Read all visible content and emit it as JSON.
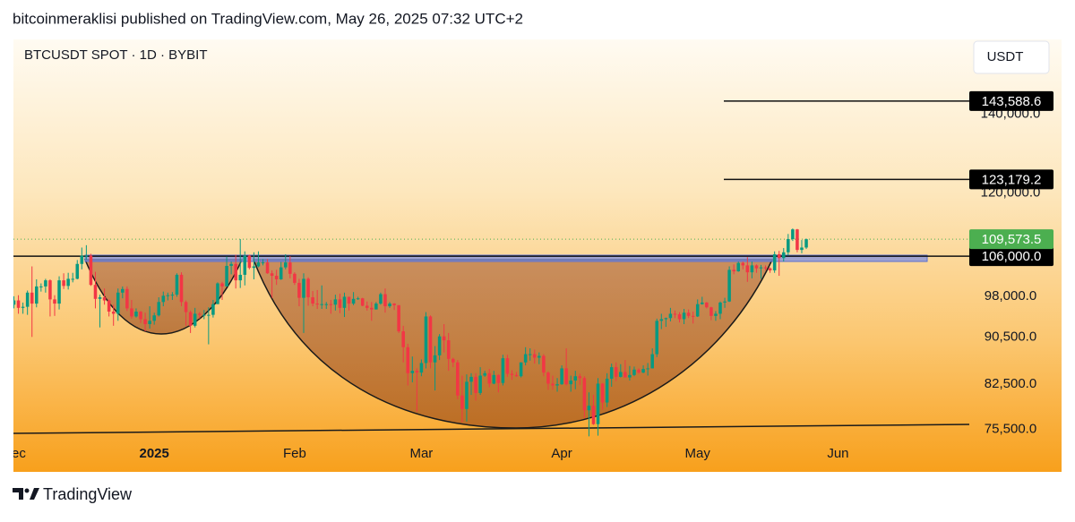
{
  "header": {
    "publisher": "bitcoinmeraklisi published on TradingView.com, May 26, 2025 07:32 UTC+2"
  },
  "chart_data": {
    "type": "candlestick",
    "title": "BTCUSDT SPOT · 1D · BYBIT",
    "currency": "USDT",
    "xlim": [
      0,
      211
    ],
    "xticks": [
      {
        "value": 0,
        "label": "Dec"
      },
      {
        "value": 31,
        "label": "2025",
        "bold": true
      },
      {
        "value": 62,
        "label": "Feb"
      },
      {
        "value": 90,
        "label": "Mar"
      },
      {
        "value": 121,
        "label": "Apr"
      },
      {
        "value": 151,
        "label": "May"
      },
      {
        "value": 182,
        "label": "Jun"
      }
    ],
    "ylim": [
      69500,
      162000
    ],
    "ylog": true,
    "yticks": [
      {
        "value": 75500,
        "label": "75,500.0"
      },
      {
        "value": 82500,
        "label": "82,500.0"
      },
      {
        "value": 90500,
        "label": "90,500.0"
      },
      {
        "value": 98000,
        "label": "98,000.0"
      },
      {
        "value": 120000,
        "label": "120,000.0"
      },
      {
        "value": 140000,
        "label": "140,000.0"
      }
    ],
    "up_color": "#089981",
    "down_color": "#f23645",
    "open": [
      96400,
      97200,
      95800,
      96000,
      98700,
      96600,
      99900,
      99900,
      101100,
      97400,
      96600,
      101100,
      100000,
      101400,
      101400,
      104400,
      106100,
      106100,
      100200,
      97500,
      97800,
      97200,
      95100,
      94700,
      98700,
      99400,
      95700,
      94200,
      95100,
      93700,
      92800,
      93400,
      94400,
      96900,
      98100,
      98200,
      98300,
      102200,
      96900,
      95000,
      92500,
      94700,
      94500,
      94500,
      94500,
      96500,
      100500,
      99900,
      104000,
      104400,
      101100,
      102200,
      106100,
      103600,
      103900,
      104700,
      104700,
      102500,
      102000,
      101300,
      103700,
      104700,
      102400,
      100600,
      97700,
      101400,
      97800,
      96600,
      96500,
      96500,
      96500,
      96400,
      97400,
      95800,
      97900,
      96600,
      97500,
      97600,
      96200,
      95800,
      95500,
      96600,
      98400,
      96100,
      96600,
      96300,
      91500,
      88700,
      84300,
      84700,
      84400,
      86000,
      94200,
      86100,
      87300,
      90600,
      89900,
      86700,
      86100,
      80700,
      78600,
      82900,
      83700,
      81100,
      83900,
      84300,
      82600,
      84000,
      82700,
      86800,
      84200,
      84000,
      83800,
      86100,
      87500,
      87500,
      86900,
      87200,
      84400,
      82600,
      82300,
      82500,
      85100,
      82500,
      83100,
      83800,
      83500,
      78400,
      79100,
      76300,
      82600,
      79600,
      83400,
      85300,
      83700,
      84500,
      83600,
      84000,
      84900,
      84400,
      85000,
      85100,
      87500,
      93400,
      93700,
      93900,
      94700,
      94600,
      93700,
      94900,
      94300,
      94200,
      96500,
      96800,
      95900,
      94300,
      94700,
      96800,
      97000,
      103200,
      102900,
      104600,
      104100,
      102700,
      104100,
      103500,
      103700,
      103500,
      103100,
      106400,
      105600,
      106800,
      109600,
      111700,
      107300,
      107800
    ],
    "high": [
      98000,
      98200,
      96800,
      99100,
      103900,
      101300,
      100500,
      101400,
      101300,
      98200,
      101900,
      102500,
      102600,
      102600,
      105200,
      107800,
      108300,
      106500,
      102800,
      98300,
      99500,
      97400,
      96400,
      99500,
      99900,
      99900,
      97300,
      95700,
      95200,
      94900,
      96100,
      94900,
      97800,
      98900,
      98700,
      98800,
      102500,
      102700,
      97200,
      95300,
      95800,
      95000,
      95400,
      95900,
      97300,
      100700,
      100800,
      105900,
      104900,
      106300,
      109600,
      107000,
      106300,
      106800,
      107000,
      105400,
      105400,
      103100,
      103200,
      104800,
      106400,
      106000,
      102700,
      101400,
      102500,
      101700,
      99000,
      99200,
      100100,
      96900,
      97300,
      98300,
      98500,
      98700,
      97900,
      98800,
      97900,
      97700,
      97000,
      96900,
      96900,
      98700,
      99500,
      96900,
      96700,
      96300,
      92500,
      89300,
      87100,
      85100,
      86600,
      95000,
      94400,
      88900,
      91000,
      92800,
      91200,
      86900,
      86500,
      83900,
      84100,
      84300,
      84300,
      85300,
      84700,
      85000,
      84700,
      84100,
      87400,
      87400,
      84800,
      84500,
      86100,
      88700,
      88500,
      88300,
      87800,
      87500,
      84600,
      83900,
      83500,
      85600,
      88500,
      83900,
      84700,
      84200,
      83800,
      81200,
      80800,
      83500,
      82700,
      84300,
      85900,
      86100,
      85800,
      86500,
      85500,
      85400,
      85100,
      85600,
      86000,
      88500,
      93800,
      94700,
      94000,
      95800,
      95300,
      95000,
      95600,
      95500,
      95100,
      97400,
      97900,
      96900,
      96000,
      95200,
      97000,
      97700,
      103900,
      104300,
      104900,
      104900,
      105800,
      104900,
      104300,
      104200,
      104100,
      103700,
      107000,
      107100,
      107700,
      110700,
      111900,
      111800,
      109400,
      109700
    ],
    "low": [
      95700,
      94700,
      94700,
      94500,
      90500,
      95900,
      98900,
      98700,
      94200,
      94300,
      95500,
      99400,
      99300,
      100700,
      101300,
      103300,
      105300,
      100000,
      95700,
      92200,
      96400,
      94200,
      92500,
      93400,
      97600,
      95200,
      93800,
      94000,
      93000,
      91500,
      92000,
      92700,
      94200,
      96100,
      97200,
      97300,
      97900,
      96100,
      92500,
      91200,
      92200,
      93800,
      93700,
      89200,
      94000,
      96500,
      97300,
      99900,
      102300,
      99500,
      99600,
      100100,
      103300,
      101300,
      103700,
      104100,
      102400,
      97700,
      100200,
      101200,
      103300,
      101500,
      100200,
      96100,
      91200,
      96200,
      96100,
      95600,
      95600,
      95600,
      94700,
      95300,
      94800,
      94100,
      95300,
      96300,
      97300,
      96100,
      95300,
      93400,
      95500,
      96400,
      94900,
      95800,
      95400,
      91200,
      86100,
      82300,
      82800,
      78200,
      83800,
      85100,
      85100,
      81500,
      86500,
      87800,
      84700,
      85300,
      80100,
      76600,
      76700,
      80800,
      79900,
      80800,
      83700,
      82000,
      82500,
      81200,
      82300,
      83700,
      83200,
      83700,
      83600,
      85600,
      86400,
      85900,
      85800,
      83800,
      81600,
      81600,
      81300,
      82400,
      82300,
      81300,
      81700,
      82400,
      77200,
      74500,
      76200,
      74600,
      78500,
      78900,
      82100,
      83000,
      83600,
      83600,
      83100,
      83800,
      84200,
      84300,
      83900,
      85100,
      87000,
      91900,
      92300,
      93300,
      93900,
      93100,
      92800,
      93900,
      92900,
      94100,
      96400,
      95700,
      93500,
      93400,
      93700,
      95800,
      96900,
      102300,
      102800,
      103300,
      100800,
      101500,
      102600,
      101400,
      103100,
      102600,
      102600,
      102000,
      104900,
      106100,
      109200,
      106800,
      106600,
      107500
    ],
    "close": [
      97200,
      95800,
      96000,
      98700,
      96600,
      99900,
      99900,
      101100,
      97400,
      96600,
      101100,
      100000,
      101400,
      101400,
      104400,
      106100,
      106100,
      100200,
      97500,
      97800,
      97200,
      95100,
      94700,
      98700,
      99400,
      95700,
      94200,
      95100,
      93700,
      92800,
      93400,
      94400,
      96900,
      98100,
      98200,
      98300,
      102200,
      96900,
      95000,
      92500,
      94700,
      94500,
      94500,
      94500,
      96500,
      100500,
      99900,
      104000,
      104400,
      101100,
      102200,
      106100,
      103600,
      103900,
      104700,
      104700,
      102500,
      102000,
      101300,
      103700,
      104700,
      102400,
      100600,
      97700,
      101400,
      97800,
      96600,
      96500,
      96500,
      96500,
      96400,
      97400,
      95800,
      97900,
      96600,
      97500,
      97600,
      96200,
      95800,
      95500,
      96600,
      98400,
      96100,
      96600,
      96300,
      91500,
      88700,
      84300,
      84700,
      84400,
      86000,
      94200,
      86100,
      87300,
      90600,
      89900,
      86700,
      86100,
      80700,
      78600,
      82900,
      83700,
      81100,
      83900,
      84300,
      82600,
      84000,
      82700,
      86800,
      84200,
      84000,
      83800,
      86100,
      87500,
      87500,
      86900,
      87200,
      84400,
      82600,
      82300,
      82500,
      85100,
      82500,
      83100,
      83800,
      83500,
      78400,
      79100,
      76300,
      82600,
      79600,
      83400,
      85300,
      83700,
      84500,
      83600,
      84000,
      84900,
      84400,
      85000,
      85100,
      87500,
      93400,
      93700,
      93900,
      94700,
      94600,
      93700,
      94900,
      94300,
      94200,
      96500,
      96800,
      95900,
      94300,
      94700,
      96800,
      97000,
      103200,
      102900,
      104600,
      104100,
      102700,
      104100,
      103500,
      103700,
      103500,
      103100,
      106400,
      105600,
      106800,
      109600,
      111700,
      107300,
      107800,
      109573.5
    ],
    "levels": [
      {
        "value": 143588.6,
        "label": "143,588.6"
      },
      {
        "value": 123179.2,
        "label": "123,179.2"
      },
      {
        "value": 106000,
        "label": "106,000.0"
      }
    ],
    "last_price": {
      "value": 109573.5,
      "label": "109,573.5",
      "color": "#4caf50"
    }
  },
  "footer": {
    "brand": "TradingView"
  }
}
